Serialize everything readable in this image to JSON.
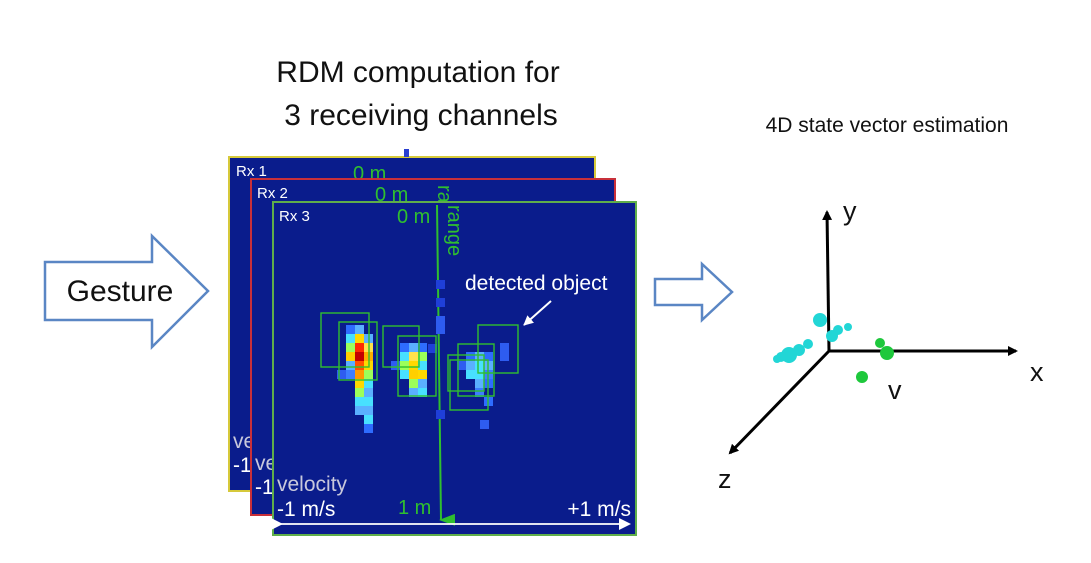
{
  "title_line1": "RDM computation for",
  "title_line2": "3 receiving channels",
  "state_label": "4D state vector estimation",
  "gesture_label": "Gesture",
  "channels": [
    {
      "name": "Rx 1",
      "border": "#d6c93a"
    },
    {
      "name": "Rx 2",
      "border": "#c8303a"
    },
    {
      "name": "Rx 3",
      "border": "#5fae4a"
    }
  ],
  "rdm": {
    "zero_range": "0 m",
    "one_range": "1 m",
    "range_axis": "range",
    "velocity_axis": "velocity",
    "velocity_min": "-1 m/s",
    "velocity_max": "+1 m/s",
    "detected_label": "detected object",
    "background_color": "#0a1c8c",
    "range_color": "#2fbf2f"
  },
  "axes": {
    "x": "x",
    "y": "y",
    "z": "z",
    "v": "v"
  },
  "colors": {
    "arrow_outline": "#5a86c4",
    "points_cyan": "#22d6d6",
    "points_green": "#1ec83c"
  }
}
